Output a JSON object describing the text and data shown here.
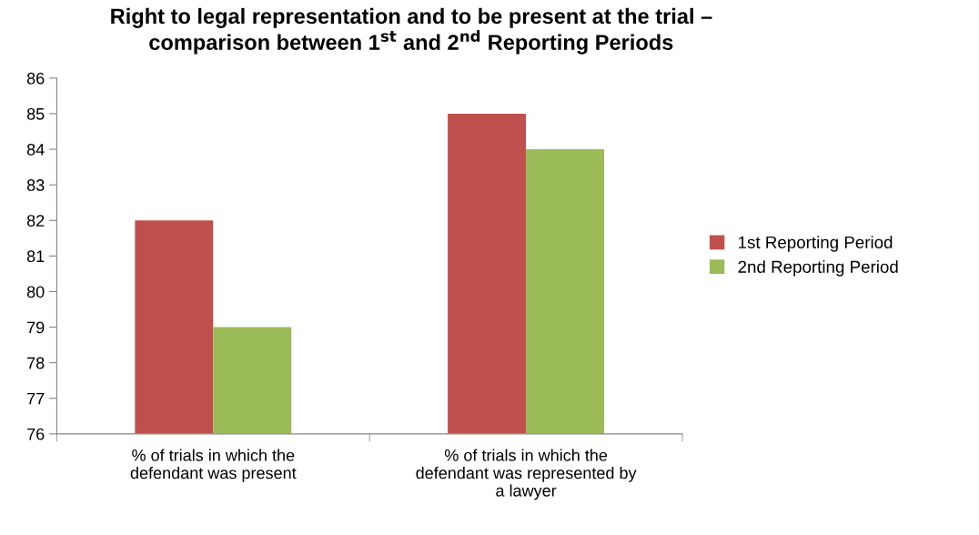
{
  "chart_data": {
    "type": "bar",
    "title": "Right to legal representation and to be present at the trial –\ncomparison between 1$^{st}$ and 2$^{nd}$ Reporting Periods",
    "categories": [
      "% of trials in which the\ndefendant was present",
      "% of trials in which the\ndefendant was represented by\na lawyer"
    ],
    "series": [
      {
        "name": "1st Reporting Period",
        "color": "#c0504d",
        "values": [
          82,
          85
        ]
      },
      {
        "name": "2nd Reporting Period",
        "color": "#9bbb59",
        "values": [
          79,
          84
        ]
      }
    ],
    "ylim": [
      76,
      86
    ],
    "yticks": [
      76,
      77,
      78,
      79,
      80,
      81,
      82,
      83,
      84,
      85,
      86
    ],
    "grid": false,
    "legend": "right"
  }
}
